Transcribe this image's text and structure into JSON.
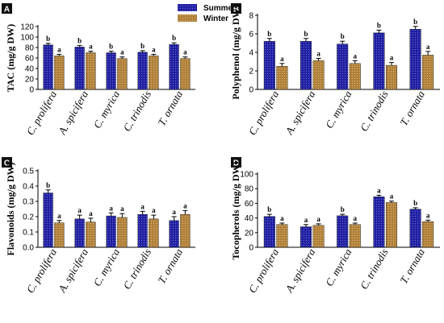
{
  "legend": [
    {
      "name": "Summer",
      "color": "#1f1fa0"
    },
    {
      "name": "Winter",
      "color": "#b0803a"
    }
  ],
  "chart_data": [
    {
      "panel": "A",
      "type": "bar",
      "ylabel": "TAC (mg/g DW)",
      "ylim": [
        0,
        120
      ],
      "yticks": [
        "0",
        "20",
        "40",
        "60",
        "80",
        "100",
        "120"
      ],
      "categories": [
        "C. prolifera",
        "A. spicifera",
        "C. myrica",
        "C. trinodis",
        "T. ornata"
      ],
      "series": [
        {
          "name": "Summer",
          "values": [
            85,
            81,
            70,
            71,
            86
          ],
          "errors": [
            3,
            3,
            3,
            3,
            3
          ],
          "labels": [
            "b",
            "b",
            "b",
            "b",
            "b"
          ]
        },
        {
          "name": "Winter",
          "values": [
            64,
            70,
            59,
            64,
            59
          ],
          "errors": [
            3,
            3,
            3,
            3,
            3
          ],
          "labels": [
            "a",
            "a",
            "a",
            "a",
            "a"
          ]
        }
      ]
    },
    {
      "panel": "B",
      "type": "bar",
      "ylabel": "Polyphenol (mg/g DW)",
      "ylim": [
        0,
        8
      ],
      "yticks": [
        "0",
        "2",
        "4",
        "6",
        "8"
      ],
      "categories": [
        "C. prolifera",
        "A. spicifera",
        "C. myrica",
        "C. trinodis",
        "T. ornata"
      ],
      "series": [
        {
          "name": "Summer",
          "values": [
            5.2,
            5.2,
            4.9,
            6.1,
            6.5
          ],
          "errors": [
            0.3,
            0.3,
            0.3,
            0.3,
            0.3
          ],
          "labels": [
            "b",
            "b",
            "b",
            "b",
            "b"
          ]
        },
        {
          "name": "Winter",
          "values": [
            2.5,
            3.1,
            2.8,
            2.6,
            3.7
          ],
          "errors": [
            0.3,
            0.25,
            0.3,
            0.3,
            0.4
          ],
          "labels": [
            "a",
            "a",
            "a",
            "a",
            "a"
          ]
        }
      ]
    },
    {
      "panel": "C",
      "type": "bar",
      "ylabel": "Flavonoids (mg/g DW)",
      "ylim": [
        0,
        0.5
      ],
      "yticks": [
        "0.0",
        "0.1",
        "0.2",
        "0.3",
        "0.4",
        "0.5"
      ],
      "categories": [
        "C. prolifera",
        "A. spicifera",
        "C. myrica",
        "C. trinodis",
        "T. ornata"
      ],
      "series": [
        {
          "name": "Summer",
          "values": [
            0.355,
            0.185,
            0.205,
            0.215,
            0.175
          ],
          "errors": [
            0.02,
            0.025,
            0.02,
            0.02,
            0.025
          ],
          "labels": [
            "b",
            "a",
            "a",
            "a",
            "a"
          ]
        },
        {
          "name": "Winter",
          "values": [
            0.16,
            0.165,
            0.195,
            0.185,
            0.215
          ],
          "errors": [
            0.015,
            0.025,
            0.025,
            0.025,
            0.025
          ],
          "labels": [
            "a",
            "a",
            "a",
            "a",
            "a"
          ]
        }
      ]
    },
    {
      "panel": "D",
      "type": "bar",
      "ylabel": "Tocopherols (mg/g DW)",
      "ylim": [
        0,
        100
      ],
      "yticks": [
        "0",
        "20",
        "40",
        "60",
        "80",
        "100"
      ],
      "categories": [
        "C. prolifera",
        "A. spicifera",
        "C. myrica",
        "C. trinodis",
        "T. ornata"
      ],
      "series": [
        {
          "name": "Summer",
          "values": [
            42,
            28,
            43,
            69,
            52
          ],
          "errors": [
            3,
            3,
            2,
            2,
            2
          ],
          "labels": [
            "b",
            "a",
            "b",
            "a",
            "b"
          ]
        },
        {
          "name": "Winter",
          "values": [
            31,
            30,
            31,
            61,
            35
          ],
          "errors": [
            2,
            2,
            2,
            2,
            2
          ],
          "labels": [
            "a",
            "a",
            "a",
            "a",
            "a"
          ]
        }
      ]
    }
  ]
}
